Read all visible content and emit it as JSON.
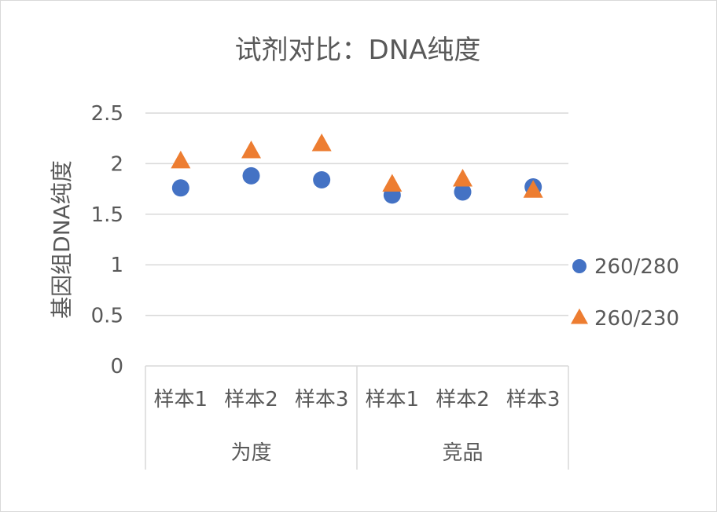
{
  "chart_data": {
    "type": "scatter",
    "title": "试剂对比：DNA纯度",
    "ylabel": "基因组DNA纯度",
    "xlabel": "",
    "ylim": [
      0,
      2.5
    ],
    "yticks": [
      "0",
      "0.5",
      "1",
      "1.5",
      "2",
      "2.5"
    ],
    "grid": true,
    "legend_position": "right",
    "groups": [
      {
        "label": "为度",
        "categories": [
          "样本1",
          "样本2",
          "样本3"
        ]
      },
      {
        "label": "竞品",
        "categories": [
          "样本1",
          "样本2",
          "样本3"
        ]
      }
    ],
    "categories": [
      "样本1",
      "样本2",
      "样本3",
      "样本1",
      "样本2",
      "样本3"
    ],
    "series": [
      {
        "name": "260/280",
        "marker": "circle",
        "color": "#4472c4",
        "values": [
          1.76,
          1.88,
          1.84,
          1.69,
          1.72,
          1.77
        ]
      },
      {
        "name": "260/230",
        "marker": "triangle",
        "color": "#ed7d31",
        "values": [
          2.02,
          2.12,
          2.19,
          1.79,
          1.84,
          1.73
        ]
      }
    ]
  }
}
